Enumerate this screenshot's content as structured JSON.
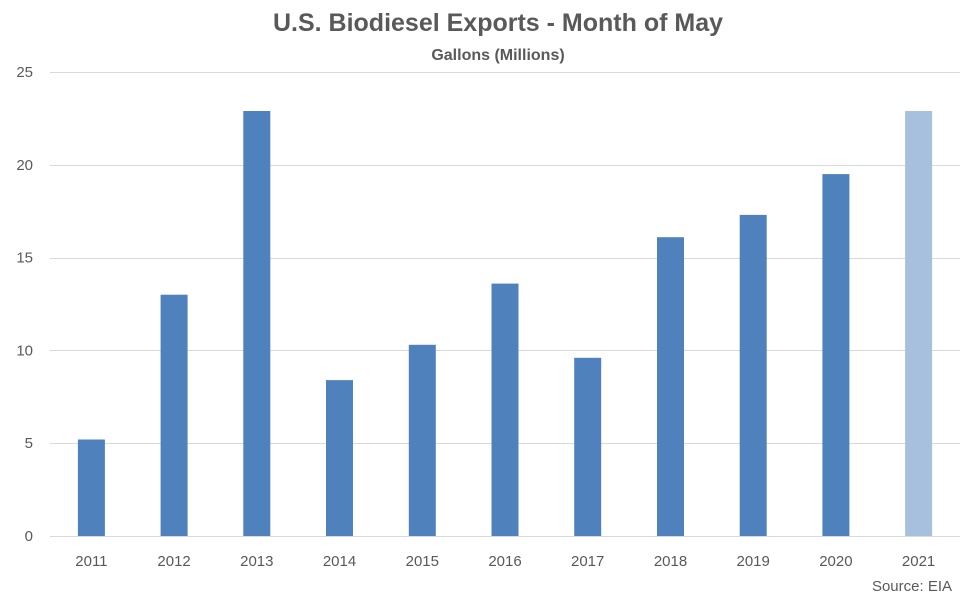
{
  "chart_data": {
    "type": "bar",
    "title": "U.S. Biodiesel Exports - Month of May",
    "subtitle": "Gallons (Millions)",
    "source": "Source: EIA",
    "categories": [
      "2011",
      "2012",
      "2013",
      "2014",
      "2015",
      "2016",
      "2017",
      "2018",
      "2019",
      "2020",
      "2021"
    ],
    "values": [
      5.2,
      13.0,
      22.9,
      8.4,
      10.3,
      13.6,
      9.6,
      16.1,
      17.3,
      19.5,
      22.9
    ],
    "ylim": [
      0,
      25
    ],
    "yticks": [
      0,
      5,
      10,
      15,
      20,
      25
    ],
    "grid": true,
    "colors": {
      "bar": "#4f81bd",
      "highlight_bar": "#a7c0de",
      "gridline": "#d9d9d9",
      "text": "#595959"
    },
    "highlight_category": "2021"
  }
}
